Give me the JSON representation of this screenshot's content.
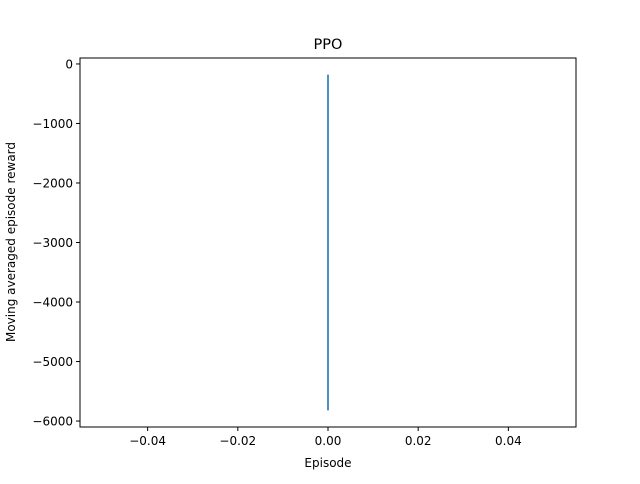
{
  "chart_data": {
    "type": "line",
    "title": "PPO",
    "xlabel": "Episode",
    "ylabel": "Moving averaged episode reward",
    "xlim": [
      -0.055,
      0.055
    ],
    "ylim": [
      -6100,
      100
    ],
    "x_ticks": [
      -0.04,
      -0.02,
      0.0,
      0.02,
      0.04
    ],
    "x_tick_labels": [
      "−0.04",
      "−0.02",
      "0.00",
      "0.02",
      "0.04"
    ],
    "y_ticks": [
      0,
      -1000,
      -2000,
      -3000,
      -4000,
      -5000,
      -6000
    ],
    "y_tick_labels": [
      "0",
      "−1000",
      "−2000",
      "−3000",
      "−4000",
      "−5000",
      "−6000"
    ],
    "grid": false,
    "series": [
      {
        "color": "#1f77b4",
        "x": [
          0,
          0
        ],
        "y": [
          -180,
          -5820
        ]
      }
    ]
  }
}
